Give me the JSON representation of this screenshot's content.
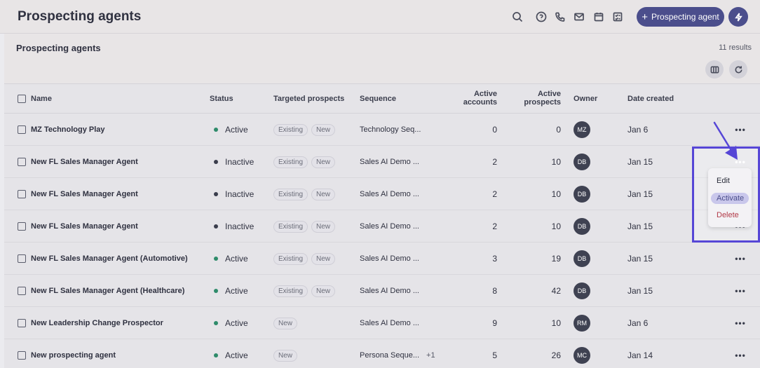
{
  "header": {
    "title": "Prospecting agents",
    "primary_button": "Prospecting agent"
  },
  "panel": {
    "title": "Prospecting agents",
    "results": "11 results"
  },
  "columns": {
    "name": "Name",
    "status": "Status",
    "targeted": "Targeted prospects",
    "sequence": "Sequence",
    "active_accounts_1": "Active",
    "active_accounts_2": "accounts",
    "active_prospects_1": "Active",
    "active_prospects_2": "prospects",
    "owner": "Owner",
    "date": "Date created"
  },
  "rows": [
    {
      "name": "MZ Technology Play",
      "status": "Active",
      "tags": [
        "Existing",
        "New"
      ],
      "sequence": "Technology Seq...",
      "extra": "",
      "accounts": "0",
      "prospects": "0",
      "owner": "MZ",
      "date": "Jan 6"
    },
    {
      "name": "New FL Sales Manager Agent",
      "status": "Inactive",
      "tags": [
        "Existing",
        "New"
      ],
      "sequence": "Sales AI Demo ...",
      "extra": "",
      "accounts": "2",
      "prospects": "10",
      "owner": "DB",
      "date": "Jan 15"
    },
    {
      "name": "New FL Sales Manager Agent",
      "status": "Inactive",
      "tags": [
        "Existing",
        "New"
      ],
      "sequence": "Sales AI Demo ...",
      "extra": "",
      "accounts": "2",
      "prospects": "10",
      "owner": "DB",
      "date": "Jan 15"
    },
    {
      "name": "New FL Sales Manager Agent",
      "status": "Inactive",
      "tags": [
        "Existing",
        "New"
      ],
      "sequence": "Sales AI Demo ...",
      "extra": "",
      "accounts": "2",
      "prospects": "10",
      "owner": "DB",
      "date": "Jan 15"
    },
    {
      "name": "New FL Sales Manager Agent (Automotive)",
      "status": "Active",
      "tags": [
        "Existing",
        "New"
      ],
      "sequence": "Sales AI Demo ...",
      "extra": "",
      "accounts": "3",
      "prospects": "19",
      "owner": "DB",
      "date": "Jan 15"
    },
    {
      "name": "New FL Sales Manager Agent (Healthcare)",
      "status": "Active",
      "tags": [
        "Existing",
        "New"
      ],
      "sequence": "Sales AI Demo ...",
      "extra": "",
      "accounts": "8",
      "prospects": "42",
      "owner": "DB",
      "date": "Jan 15"
    },
    {
      "name": "New Leadership Change Prospector",
      "status": "Active",
      "tags": [
        "New"
      ],
      "sequence": "Sales AI Demo ...",
      "extra": "",
      "accounts": "9",
      "prospects": "10",
      "owner": "RM",
      "date": "Jan 6"
    },
    {
      "name": "New prospecting agent",
      "status": "Active",
      "tags": [
        "New"
      ],
      "sequence": "Persona Seque...",
      "extra": "+1",
      "accounts": "5",
      "prospects": "26",
      "owner": "MC",
      "date": "Jan 14"
    }
  ],
  "menu": {
    "edit": "Edit",
    "activate": "Activate",
    "delete": "Delete"
  },
  "colors": {
    "active_dot": "#2e8b6a",
    "inactive_dot": "#3a3d4c",
    "primary": "#4b4e8c",
    "annotation": "#5646d6"
  }
}
